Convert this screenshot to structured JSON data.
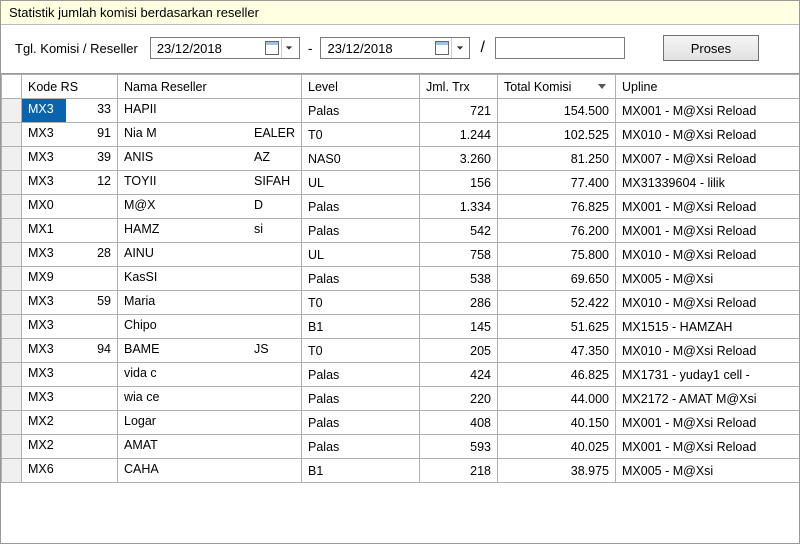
{
  "title": "Statistik jumlah komisi berdasarkan reseller",
  "filter": {
    "label": "Tgl. Komisi / Reseller",
    "date_from": "23/12/2018",
    "date_to": "23/12/2018",
    "separator": "-",
    "slash": "/",
    "search_value": "",
    "proses_label": "Proses"
  },
  "columns": {
    "kode": "Kode RS",
    "nama": "Nama Reseller",
    "level": "Level",
    "trx": "Jml. Trx",
    "komisi": "Total Komisi",
    "upline": "Upline"
  },
  "sort": {
    "column": "komisi",
    "direction": "desc"
  },
  "rows": [
    {
      "kode_l": "MX3",
      "kode_r": "33",
      "nama_l": "HAPII",
      "nama_r": "",
      "level": "Palas",
      "trx": "721",
      "komisi": "154.500",
      "upline": "MX001 - M@Xsi Reload",
      "selected": true
    },
    {
      "kode_l": "MX3",
      "kode_r": "91",
      "nama_l": "Nia M",
      "nama_r": "EALER",
      "level": "T0",
      "trx": "1.244",
      "komisi": "102.525",
      "upline": "MX010 - M@Xsi Reload"
    },
    {
      "kode_l": "MX3",
      "kode_r": "39",
      "nama_l": "ANIS",
      "nama_r": "AZ",
      "level": "NAS0",
      "trx": "3.260",
      "komisi": "81.250",
      "upline": "MX007 - M@Xsi Reload"
    },
    {
      "kode_l": "MX3",
      "kode_r": "12",
      "nama_l": "TOYII",
      "nama_r": "SIFAH",
      "level": "UL",
      "trx": "156",
      "komisi": "77.400",
      "upline": "MX31339604 - lilik"
    },
    {
      "kode_l": "MX0",
      "kode_r": "",
      "nama_l": "M@X",
      "nama_r": "D",
      "level": "Palas",
      "trx": "1.334",
      "komisi": "76.825",
      "upline": "MX001 - M@Xsi Reload"
    },
    {
      "kode_l": "MX1",
      "kode_r": "",
      "nama_l": "HAMZ",
      "nama_r": "si",
      "level": "Palas",
      "trx": "542",
      "komisi": "76.200",
      "upline": "MX001 - M@Xsi Reload"
    },
    {
      "kode_l": "MX3",
      "kode_r": "28",
      "nama_l": "AINU",
      "nama_r": "",
      "level": "UL",
      "trx": "758",
      "komisi": "75.800",
      "upline": "MX010 - M@Xsi Reload"
    },
    {
      "kode_l": "MX9",
      "kode_r": "",
      "nama_l": "KasSI",
      "nama_r": "",
      "level": "Palas",
      "trx": "538",
      "komisi": "69.650",
      "upline": "MX005 - M@Xsi"
    },
    {
      "kode_l": "MX3",
      "kode_r": "59",
      "nama_l": "Maria",
      "nama_r": "",
      "level": "T0",
      "trx": "286",
      "komisi": "52.422",
      "upline": "MX010 - M@Xsi Reload"
    },
    {
      "kode_l": "MX3",
      "kode_r": "",
      "nama_l": "Chipo",
      "nama_r": "",
      "level": "B1",
      "trx": "145",
      "komisi": "51.625",
      "upline": "MX1515 - HAMZAH"
    },
    {
      "kode_l": "MX3",
      "kode_r": "94",
      "nama_l": "BAME",
      "nama_r": "JS",
      "level": "T0",
      "trx": "205",
      "komisi": "47.350",
      "upline": "MX010 - M@Xsi Reload"
    },
    {
      "kode_l": "MX3",
      "kode_r": "",
      "nama_l": "vida c",
      "nama_r": "",
      "level": "Palas",
      "trx": "424",
      "komisi": "46.825",
      "upline": "MX1731 - yuday1 cell -"
    },
    {
      "kode_l": "MX3",
      "kode_r": "",
      "nama_l": "wia ce",
      "nama_r": "",
      "level": "Palas",
      "trx": "220",
      "komisi": "44.000",
      "upline": "MX2172 - AMAT M@Xsi"
    },
    {
      "kode_l": "MX2",
      "kode_r": "",
      "nama_l": "Logar",
      "nama_r": "",
      "level": "Palas",
      "trx": "408",
      "komisi": "40.150",
      "upline": "MX001 - M@Xsi Reload"
    },
    {
      "kode_l": "MX2",
      "kode_r": "",
      "nama_l": "AMAT",
      "nama_r": "",
      "level": "Palas",
      "trx": "593",
      "komisi": "40.025",
      "upline": "MX001 - M@Xsi Reload"
    },
    {
      "kode_l": "MX6",
      "kode_r": "",
      "nama_l": "CAHA",
      "nama_r": "",
      "level": "B1",
      "trx": "218",
      "komisi": "38.975",
      "upline": "MX005 - M@Xsi"
    }
  ],
  "colors": {
    "title_bg": "#ffffe1",
    "selected_bg": "#0a64ad",
    "selected_fg": "#ffffff",
    "border": "#b0b0b0"
  }
}
